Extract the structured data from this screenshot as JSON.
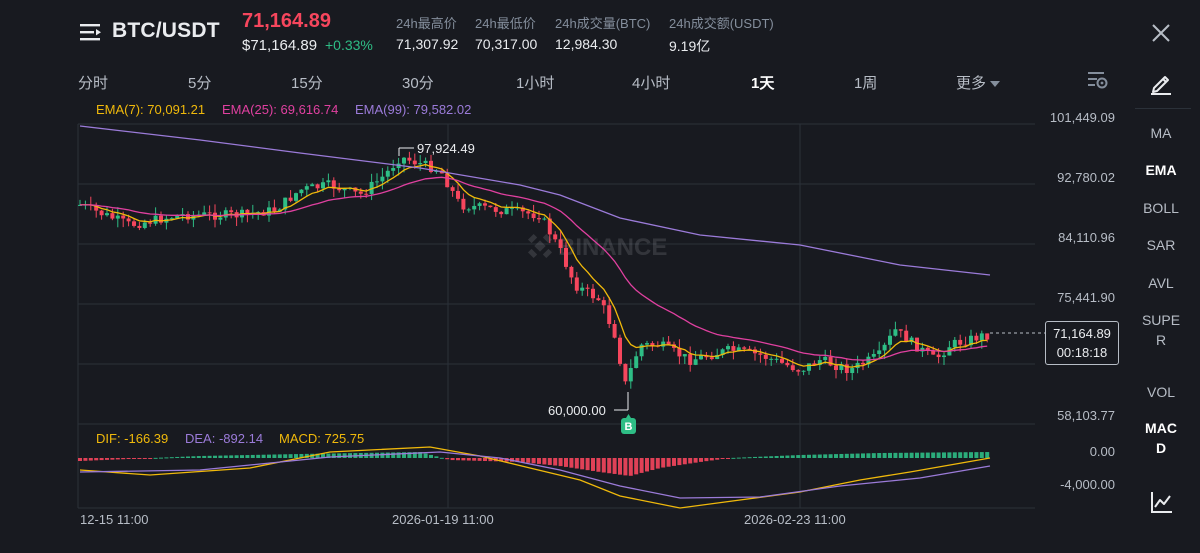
{
  "header": {
    "pair": "BTC/USDT",
    "last_price": "71,164.89",
    "fiat_price": "$71,164.89",
    "change": "+0.33%",
    "stats": [
      {
        "label": "24h最高价",
        "value": "71,307.92"
      },
      {
        "label": "24h最低价",
        "value": "70,317.00"
      },
      {
        "label": "24h成交量(BTC)",
        "value": "12,984.30"
      },
      {
        "label": "24h成交额(USDT)",
        "value": "9.19亿"
      }
    ]
  },
  "tabs": [
    "分时",
    "5分",
    "15分",
    "30分",
    "1小时",
    "4小时",
    "1天",
    "1周",
    "更多"
  ],
  "active_tab": "1天",
  "indicators": [
    "MA",
    "EMA",
    "BOLL",
    "SAR",
    "AVL",
    "SUPE",
    "R",
    "VOL",
    "MAC",
    "D"
  ],
  "active_indicators": [
    "EMA",
    "MACD"
  ],
  "chart": {
    "ema_legend": {
      "ema7": "EMA(7): 70,091.21",
      "ema25": "EMA(25): 69,616.74",
      "ema99": "EMA(99): 79,582.02"
    },
    "macd_legend": {
      "dif": "DIF: -166.39",
      "dea": "DEA: -892.14",
      "macd": "MACD: 725.75"
    },
    "price_axis": [
      "101,449.09",
      "92,780.02",
      "84,110.96",
      "75,441.90",
      "58,103.77"
    ],
    "macd_axis": [
      "0.00",
      "-4,000.00"
    ],
    "time_axis": [
      "12-15 11:00",
      "2026-01-19 11:00",
      "2026-02-23 11:00"
    ],
    "high_marker": "97,924.49",
    "low_marker": "60,000.00",
    "buy_marker": "B",
    "current_price": "71,164.89",
    "countdown": "00:18:18",
    "watermark": "BINANCE",
    "colors": {
      "up": "#2ebd85",
      "down": "#f6465d",
      "ema7": "#f0b90b",
      "ema25": "#e040a0",
      "ema99": "#9b7bd9",
      "dif": "#f0b90b",
      "dea": "#9b7bd9"
    }
  }
}
